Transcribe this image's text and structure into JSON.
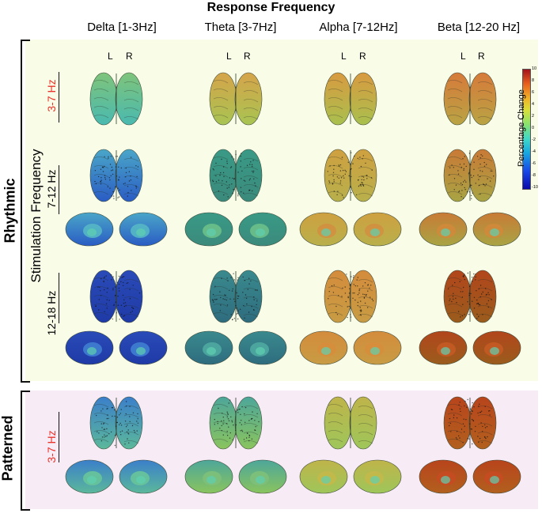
{
  "header": {
    "title": "Response Frequency"
  },
  "columns": [
    "Delta [1-3Hz]",
    "Theta [3-7Hz]",
    "Alpha [7-12Hz]",
    "Beta [12-20 Hz]"
  ],
  "hemisphere_labels": {
    "left": "L",
    "right": "R"
  },
  "axis": {
    "stimulation": "Stimulation Frequency"
  },
  "groups": {
    "rhythmic": "Rhythmic",
    "patterned": "Patterned"
  },
  "rows": [
    {
      "label": "3-7 Hz",
      "group": "Rhythmic",
      "label_color": "#e8322b",
      "medial_views": false
    },
    {
      "label": "7-12 Hz",
      "group": "Rhythmic",
      "label_color": "#000000",
      "medial_views": true
    },
    {
      "label": "12-18 Hz",
      "group": "Rhythmic",
      "label_color": "#000000",
      "medial_views": true
    },
    {
      "label": "3-7 Hz",
      "group": "Patterned",
      "label_color": "#e8322b",
      "medial_views": true
    }
  ],
  "colorbar": {
    "title": "Percentage Change",
    "ticks": [
      "10",
      "8",
      "6",
      "4",
      "2",
      "0",
      "-2",
      "-4",
      "-6",
      "-8",
      "-10"
    ],
    "colors": [
      "#0a0aa8",
      "#1848e8",
      "#19a6e0",
      "#40d8c8",
      "#8ee26a",
      "#d8e03a",
      "#f0b128",
      "#e8601e",
      "#a5111a"
    ]
  },
  "brain_maps": [
    [
      {
        "top": "#7fc47a",
        "bottom": "#49b9b0",
        "tint": "#6fcf8a",
        "speckle": false
      },
      {
        "top": "#d6a44a",
        "bottom": "#a8c452",
        "tint": "#c8b24a",
        "speckle": false
      },
      {
        "top": "#d99a40",
        "bottom": "#a9c04e",
        "tint": "#c9a646",
        "speckle": false
      },
      {
        "top": "#d77a3a",
        "bottom": "#b9a444",
        "tint": "#cf8a40",
        "speckle": false
      }
    ],
    [
      {
        "top": "#4aa6c8",
        "bottom": "#2a5cc4",
        "tint": "#55b7c4",
        "speckle": true
      },
      {
        "top": "#3a9a86",
        "bottom": "#3b8a7c",
        "tint": "#6cc08a",
        "speckle": true
      },
      {
        "top": "#cfa040",
        "bottom": "#b8b04c",
        "tint": "#d09040",
        "speckle": true
      },
      {
        "top": "#c97a36",
        "bottom": "#a8a444",
        "tint": "#d08a3a",
        "speckle": true
      }
    ],
    [
      {
        "top": "#2a4bb8",
        "bottom": "#1f3aa6",
        "tint": "#3f7ed0",
        "speckle": true
      },
      {
        "top": "#3a8a8e",
        "bottom": "#2e6c7e",
        "tint": "#4ea9a0",
        "speckle": true
      },
      {
        "top": "#d48c3c",
        "bottom": "#c89c44",
        "tint": "#d68e3c",
        "speckle": true
      },
      {
        "top": "#b2461c",
        "bottom": "#9a5c1c",
        "tint": "#c45a24",
        "speckle": true
      }
    ],
    [
      {
        "top": "#3b7fca",
        "bottom": "#5bb89a",
        "tint": "#67c49a",
        "speckle": true
      },
      {
        "top": "#4da69a",
        "bottom": "#8ac45e",
        "tint": "#7ec07a",
        "speckle": true
      },
      {
        "top": "#bfb44a",
        "bottom": "#9ec65a",
        "tint": "#c4b84a",
        "speckle": false
      },
      {
        "top": "#b8441c",
        "bottom": "#b2601e",
        "tint": "#c74a22",
        "speckle": true
      }
    ]
  ]
}
